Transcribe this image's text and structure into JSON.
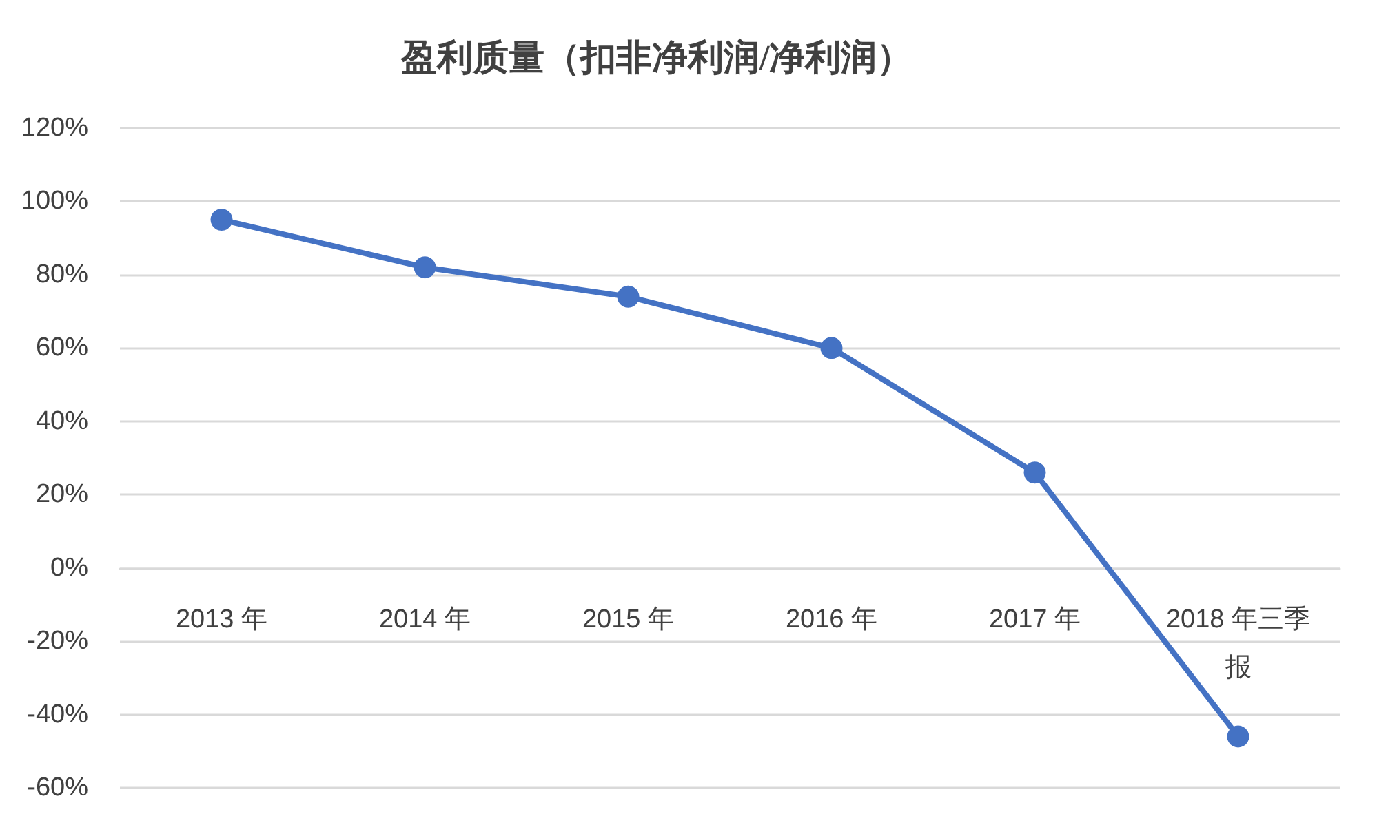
{
  "chart_data": {
    "type": "line",
    "title": "盈利质量（扣非净利润/净利润）",
    "categories": [
      "2013 年",
      "2014 年",
      "2015 年",
      "2016 年",
      "2017 年",
      "2018 年三季报"
    ],
    "series": [
      {
        "color": "#4472c4",
        "values": [
          95,
          82,
          74,
          60,
          26,
          -46
        ]
      }
    ],
    "ylim": [
      -60,
      120
    ],
    "yticks": [
      {
        "value": -60,
        "label": "-60%"
      },
      {
        "value": -40,
        "label": "-40%"
      },
      {
        "value": -20,
        "label": "-20%"
      },
      {
        "value": 0,
        "label": "0%"
      },
      {
        "value": 20,
        "label": "20%"
      },
      {
        "value": 40,
        "label": "40%"
      },
      {
        "value": 60,
        "label": "60%"
      },
      {
        "value": 80,
        "label": "80%"
      },
      {
        "value": 100,
        "label": "100%"
      },
      {
        "value": 120,
        "label": "120%"
      }
    ],
    "grid": "y",
    "marker": "circle",
    "line_style": "solid"
  }
}
